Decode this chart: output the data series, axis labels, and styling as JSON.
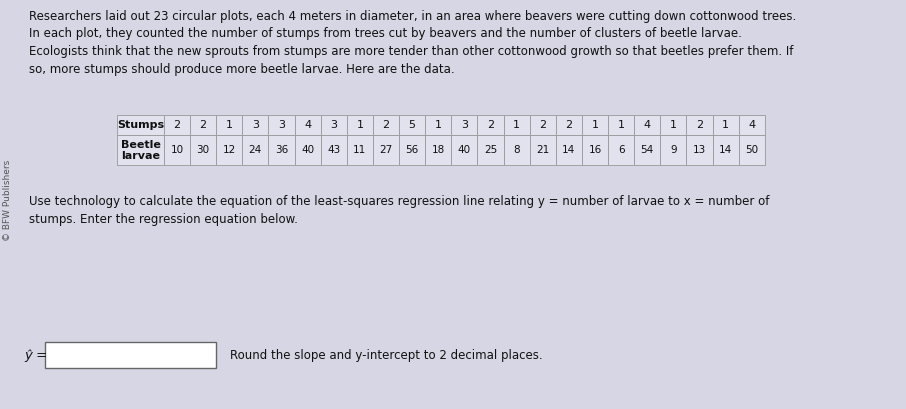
{
  "title_lines": [
    "Researchers laid out 23 circular plots, each 4 meters in diameter, in an area where beavers were cutting down cottonwood trees.",
    "In each plot, they counted the number of stumps from trees cut by beavers and the number of clusters of beetle larvae.",
    "Ecologists think that the new sprouts from stumps are more tender than other cottonwood growth so that beetles prefer them. If",
    "so, more stumps should produce more beetle larvae. Here are the data."
  ],
  "stumps": [
    2,
    2,
    1,
    3,
    3,
    4,
    3,
    1,
    2,
    5,
    1,
    3,
    2,
    1,
    2,
    2,
    1,
    1,
    4,
    1,
    2,
    1,
    4
  ],
  "larvae": [
    10,
    30,
    12,
    24,
    36,
    40,
    43,
    11,
    27,
    56,
    18,
    40,
    25,
    8,
    21,
    14,
    16,
    6,
    54,
    9,
    13,
    14,
    50
  ],
  "row1_label": "Stumps",
  "row2_label1": "Beetle",
  "row2_label2": "larvae",
  "use_tech_line1": "Use technology to calculate the equation of the least-squares regression line relating y = number of larvae to x = number of",
  "use_tech_line2": "stumps. Enter the regression equation below.",
  "yhat_label": "ŷ =",
  "round_note": "Round the slope and y-intercept to 2 decimal places.",
  "watermark": "© BFW Publishers",
  "bg_color": "#d6d6e4",
  "cell_bg": "#e2e2ee",
  "text_color": "#111111",
  "font_size_body": 8.5,
  "font_size_table": 8.0,
  "border_color": "#999999",
  "watermark_color": "#555555"
}
